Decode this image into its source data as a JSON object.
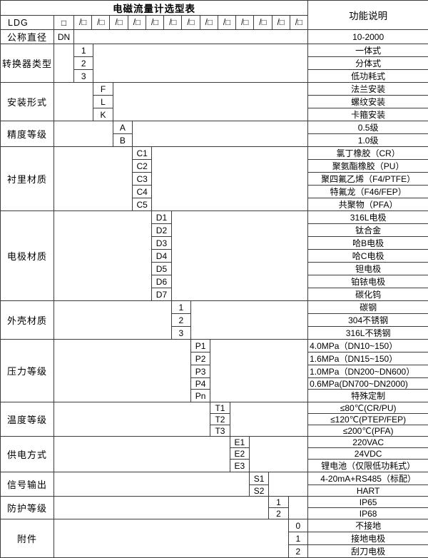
{
  "title": "电磁流量计选型表",
  "right_header": "功能说明",
  "colors": {
    "border": "#3c3c3c",
    "text": "#000000",
    "background": "#ffffff"
  },
  "model_row": {
    "model": "LDG",
    "box": "□",
    "slash_boxes": [
      "/□",
      "/□",
      "/□",
      "/□",
      "/□",
      "/□",
      "/□",
      "/□",
      "/□",
      "/□",
      "/□",
      "/□",
      "/□"
    ]
  },
  "dn_row": {
    "label": "公称直径",
    "code": "DN",
    "desc": "10-2000"
  },
  "groups": [
    {
      "label": "转换器类型",
      "col": 1,
      "items": [
        {
          "code": "1",
          "desc": "一体式"
        },
        {
          "code": "2",
          "desc": "分体式"
        },
        {
          "code": "3",
          "desc": "低功耗式"
        }
      ]
    },
    {
      "label": "安装形式",
      "col": 2,
      "items": [
        {
          "code": "F",
          "desc": "法兰安装"
        },
        {
          "code": "L",
          "desc": "螺纹安装"
        },
        {
          "code": "K",
          "desc": "卡箍安装"
        }
      ]
    },
    {
      "label": "精度等级",
      "col": 3,
      "items": [
        {
          "code": "A",
          "desc": "0.5级"
        },
        {
          "code": "B",
          "desc": "1.0级"
        }
      ]
    },
    {
      "label": "衬里材质",
      "col": 4,
      "items": [
        {
          "code": "C1",
          "desc": "氯丁橡胶（CR）"
        },
        {
          "code": "C2",
          "desc": "聚氨酯橡胶（PU）"
        },
        {
          "code": "C3",
          "desc": "聚四氟乙烯（F4/PTFE）"
        },
        {
          "code": "C4",
          "desc": "特氟龙（F46/FEP）"
        },
        {
          "code": "C5",
          "desc": "共聚物（PFA）"
        }
      ]
    },
    {
      "label": "电极材质",
      "col": 5,
      "items": [
        {
          "code": "D1",
          "desc": "316L电极"
        },
        {
          "code": "D2",
          "desc": "钛合金"
        },
        {
          "code": "D3",
          "desc": "哈B电极"
        },
        {
          "code": "D4",
          "desc": "哈C电极"
        },
        {
          "code": "D5",
          "desc": "钽电极"
        },
        {
          "code": "D6",
          "desc": "铂铱电极"
        },
        {
          "code": "D7",
          "desc": "碳化钨"
        }
      ]
    },
    {
      "label": "外壳材质",
      "col": 6,
      "items": [
        {
          "code": "1",
          "desc": "碳钢"
        },
        {
          "code": "2",
          "desc": "304不锈钢"
        },
        {
          "code": "3",
          "desc": "316L不锈钢"
        }
      ]
    },
    {
      "label": "压力等级",
      "col": 7,
      "items": [
        {
          "code": "P1",
          "desc": "4.0MPa（DN10~150）",
          "align": "left"
        },
        {
          "code": "P2",
          "desc": "1.6MPa（DN15~150）",
          "align": "left"
        },
        {
          "code": "P3",
          "desc": "1.0MPa（DN200~DN600）",
          "align": "left"
        },
        {
          "code": "P4",
          "desc": "0.6MPa(DN700~DN2000)",
          "align": "left"
        },
        {
          "code": "Pn",
          "desc": "特殊定制"
        }
      ]
    },
    {
      "label": "温度等级",
      "col": 8,
      "items": [
        {
          "code": "T1",
          "desc": "≤80℃(CR/PU)"
        },
        {
          "code": "T2",
          "desc": "≤120℃(PTEP/FEP)"
        },
        {
          "code": "T3",
          "desc": "≤200℃(PFA)"
        }
      ]
    },
    {
      "label": "供电方式",
      "col": 9,
      "items": [
        {
          "code": "E1",
          "desc": "220VAC"
        },
        {
          "code": "E2",
          "desc": "24VDC"
        },
        {
          "code": "E3",
          "desc": "锂电池（仅限低功耗式）"
        }
      ]
    },
    {
      "label": "信号输出",
      "col": 10,
      "items": [
        {
          "code": "S1",
          "desc": "4-20mA+RS485（标配）"
        },
        {
          "code": "S2",
          "desc": "HART"
        }
      ]
    },
    {
      "label": "防护等级",
      "col": 11,
      "items": [
        {
          "code": "1",
          "desc": "IP65"
        },
        {
          "code": "2",
          "desc": "IP68"
        }
      ]
    },
    {
      "label": "附件",
      "col": 12,
      "items": [
        {
          "code": "0",
          "desc": "不接地"
        },
        {
          "code": "1",
          "desc": "接地电极"
        },
        {
          "code": "2",
          "desc": "刮刀电极"
        }
      ]
    }
  ]
}
